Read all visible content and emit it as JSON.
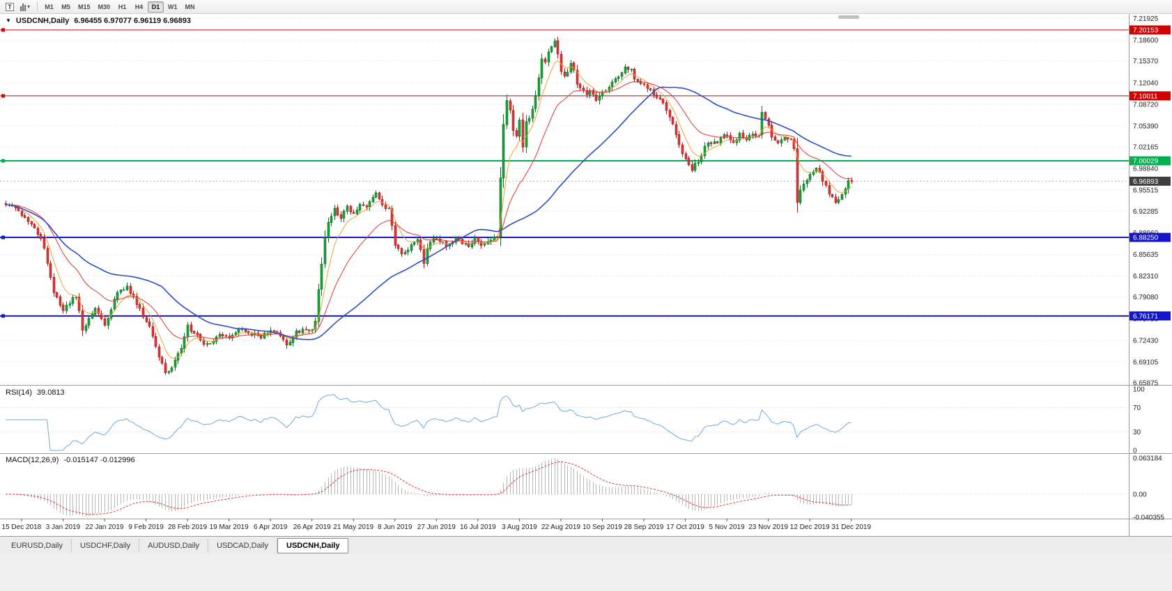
{
  "toolbar": {
    "text_tool_glyph": "T",
    "dropdown_glyph": "▾",
    "timeframes": [
      "M1",
      "M5",
      "M15",
      "M30",
      "H1",
      "H4",
      "D1",
      "W1",
      "MN"
    ],
    "active_timeframe": "D1"
  },
  "chart": {
    "title": "USDCNH,Daily",
    "ohlc": "6.96455 6.97077 6.96119 6.96893",
    "menu_glyph": "▼",
    "price_axis_labels": [
      "7.21925",
      "7.18600",
      "7.15370",
      "7.12040",
      "7.08720",
      "7.05390",
      "7.02165",
      "6.98840",
      "6.95515",
      "6.92285",
      "6.88960",
      "6.85635",
      "6.82310",
      "6.79080",
      "6.75750",
      "6.72430",
      "6.69105",
      "6.65875"
    ],
    "levels": [
      {
        "value": 7.20153,
        "label": "7.20153",
        "color": "#d40000",
        "width": 1
      },
      {
        "value": 7.10011,
        "label": "7.10011",
        "color": "#d40000",
        "width": 1
      },
      {
        "value": 7.00029,
        "label": "7.00029",
        "color": "#00b050",
        "width": 2
      },
      {
        "value": 6.8825,
        "label": "6.88250",
        "color": "#1414c8",
        "width": 2
      },
      {
        "value": 6.76171,
        "label": "6.76171",
        "color": "#1414c8",
        "width": 2
      }
    ],
    "current_price": {
      "value": 6.96893,
      "label": "6.96893",
      "bg": "#3f3f3f"
    },
    "colors": {
      "up": "#1aa23a",
      "up_stroke": "#0b6e22",
      "down": "#e33434",
      "down_stroke": "#9c1b1b",
      "grid": "#dcdcdc"
    }
  },
  "rsi": {
    "label": "RSI(14)",
    "value": "39.0813",
    "axis": [
      "100",
      "70",
      "30",
      "0"
    ]
  },
  "macd": {
    "label": "MACD(12,26,9)",
    "values": "-0.015147 -0.012996",
    "axis": [
      "0.063184",
      "0.00",
      "-0.040355"
    ]
  },
  "date_axis": [
    "15 Dec 2018",
    "3 Jan 2019",
    "22 Jan 2019",
    "9 Feb 2019",
    "28 Feb 2019",
    "19 Mar 2019",
    "6 Apr 2019",
    "26 Apr 2019",
    "21 May 2019",
    "8 Jun 2019",
    "27 Jun 2019",
    "16 Jul 2019",
    "3 Aug 2019",
    "22 Aug 2019",
    "10 Sep 2019",
    "28 Sep 2019",
    "17 Oct 2019",
    "5 Nov 2019",
    "23 Nov 2019",
    "12 Dec 2019",
    "31 Dec 2019"
  ],
  "tabs": {
    "items": [
      "EURUSD,Daily",
      "USDCHF,Daily",
      "AUDUSD,Daily",
      "USDCAD,Daily",
      "USDCNH,Daily"
    ],
    "active": "USDCNH,Daily"
  },
  "chart_data": {
    "type": "candlestick",
    "symbol": "USDCNH",
    "timeframe": "Daily",
    "candle_count": 266,
    "price_axis_range": {
      "top": 7.2262,
      "bottom": 6.6556
    },
    "close_waypoints": [
      [
        0,
        6.935
      ],
      [
        3,
        6.928
      ],
      [
        5,
        6.918
      ],
      [
        8,
        6.905
      ],
      [
        11,
        6.882
      ],
      [
        13,
        6.845
      ],
      [
        15,
        6.8
      ],
      [
        18,
        6.77
      ],
      [
        20,
        6.782
      ],
      [
        22,
        6.792
      ],
      [
        24,
        6.742
      ],
      [
        26,
        6.758
      ],
      [
        28,
        6.772
      ],
      [
        31,
        6.748
      ],
      [
        33,
        6.772
      ],
      [
        35,
        6.798
      ],
      [
        38,
        6.806
      ],
      [
        40,
        6.79
      ],
      [
        42,
        6.772
      ],
      [
        45,
        6.745
      ],
      [
        48,
        6.7
      ],
      [
        50,
        6.672
      ],
      [
        52,
        6.682
      ],
      [
        55,
        6.712
      ],
      [
        57,
        6.745
      ],
      [
        60,
        6.73
      ],
      [
        63,
        6.716
      ],
      [
        67,
        6.736
      ],
      [
        70,
        6.73
      ],
      [
        73,
        6.742
      ],
      [
        77,
        6.735
      ],
      [
        80,
        6.73
      ],
      [
        83,
        6.74
      ],
      [
        85,
        6.735
      ],
      [
        88,
        6.718
      ],
      [
        91,
        6.736
      ],
      [
        93,
        6.74
      ],
      [
        96,
        6.738
      ],
      [
        97,
        6.755
      ],
      [
        98,
        6.8
      ],
      [
        99,
        6.845
      ],
      [
        100,
        6.885
      ],
      [
        101,
        6.905
      ],
      [
        103,
        6.928
      ],
      [
        105,
        6.912
      ],
      [
        107,
        6.93
      ],
      [
        109,
        6.92
      ],
      [
        111,
        6.933
      ],
      [
        113,
        6.928
      ],
      [
        116,
        6.948
      ],
      [
        118,
        6.932
      ],
      [
        120,
        6.924
      ],
      [
        122,
        6.872
      ],
      [
        124,
        6.856
      ],
      [
        127,
        6.87
      ],
      [
        129,
        6.88
      ],
      [
        131,
        6.842
      ],
      [
        132,
        6.866
      ],
      [
        134,
        6.88
      ],
      [
        136,
        6.876
      ],
      [
        138,
        6.87
      ],
      [
        141,
        6.88
      ],
      [
        143,
        6.876
      ],
      [
        145,
        6.87
      ],
      [
        147,
        6.88
      ],
      [
        150,
        6.87
      ],
      [
        153,
        6.882
      ],
      [
        154,
        6.886
      ],
      [
        155,
        6.975
      ],
      [
        156,
        7.055
      ],
      [
        157,
        7.092
      ],
      [
        158,
        7.082
      ],
      [
        159,
        7.05
      ],
      [
        160,
        7.04
      ],
      [
        161,
        7.06
      ],
      [
        162,
        7.022
      ],
      [
        163,
        7.058
      ],
      [
        165,
        7.078
      ],
      [
        166,
        7.098
      ],
      [
        167,
        7.128
      ],
      [
        168,
        7.156
      ],
      [
        169,
        7.15
      ],
      [
        170,
        7.166
      ],
      [
        171,
        7.176
      ],
      [
        172,
        7.184
      ],
      [
        173,
        7.163
      ],
      [
        174,
        7.14
      ],
      [
        175,
        7.13
      ],
      [
        177,
        7.15
      ],
      [
        178,
        7.14
      ],
      [
        179,
        7.12
      ],
      [
        180,
        7.114
      ],
      [
        182,
        7.1
      ],
      [
        183,
        7.11
      ],
      [
        185,
        7.09
      ],
      [
        187,
        7.104
      ],
      [
        190,
        7.12
      ],
      [
        192,
        7.13
      ],
      [
        194,
        7.148
      ],
      [
        196,
        7.138
      ],
      [
        197,
        7.128
      ],
      [
        199,
        7.118
      ],
      [
        202,
        7.108
      ],
      [
        204,
        7.098
      ],
      [
        206,
        7.086
      ],
      [
        208,
        7.066
      ],
      [
        209,
        7.056
      ],
      [
        210,
        7.04
      ],
      [
        212,
        7.01
      ],
      [
        215,
        6.988
      ],
      [
        217,
        7.0
      ],
      [
        219,
        7.02
      ],
      [
        221,
        7.03
      ],
      [
        223,
        7.028
      ],
      [
        225,
        7.04
      ],
      [
        228,
        7.03
      ],
      [
        230,
        7.04
      ],
      [
        232,
        7.034
      ],
      [
        234,
        7.04
      ],
      [
        236,
        7.042
      ],
      [
        237,
        7.076
      ],
      [
        238,
        7.066
      ],
      [
        239,
        7.058
      ],
      [
        240,
        7.04
      ],
      [
        242,
        7.03
      ],
      [
        244,
        7.04
      ],
      [
        246,
        7.034
      ],
      [
        247,
        7.02
      ],
      [
        248,
        6.936
      ],
      [
        249,
        6.958
      ],
      [
        251,
        6.972
      ],
      [
        252,
        6.98
      ],
      [
        254,
        6.99
      ],
      [
        256,
        6.97
      ],
      [
        258,
        6.95
      ],
      [
        260,
        6.934
      ],
      [
        262,
        6.952
      ],
      [
        264,
        6.968
      ]
    ],
    "overlays": [
      {
        "name": "fast-ma",
        "type": "ema",
        "period": 7,
        "color": "#efa030"
      },
      {
        "name": "medium-ma",
        "type": "ema",
        "period": 20,
        "color": "#e03434"
      },
      {
        "name": "slow-ma",
        "type": "sma",
        "period": 50,
        "color": "#2b4ec8"
      }
    ],
    "rsi": {
      "period": 14,
      "color": "#6da9dc",
      "levels": [
        30,
        70
      ]
    },
    "macd": {
      "fast": 12,
      "slow": 26,
      "signal": 9,
      "histogram_color": "#b6b6b6",
      "signal_color": "#e03434",
      "scale_max": 0.063184
    }
  }
}
